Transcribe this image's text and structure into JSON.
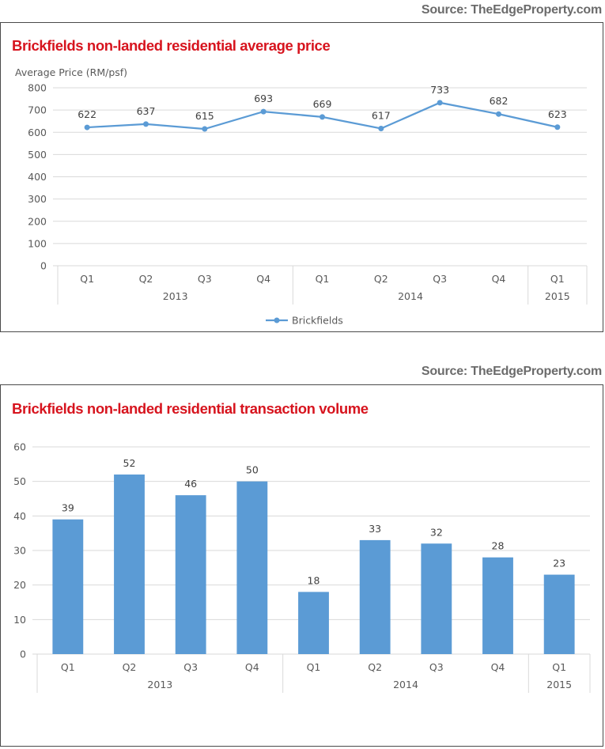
{
  "charts": [
    {
      "source": "Source: TheEdgeProperty.com",
      "chart_data": {
        "type": "line",
        "title": "Brickfields non-landed residential average price",
        "ylabel": "Average Price (RM/psf)",
        "ylim": [
          0,
          800
        ],
        "yticks": [
          0,
          100,
          200,
          300,
          400,
          500,
          600,
          700,
          800
        ],
        "categories": [
          "Q1",
          "Q2",
          "Q3",
          "Q4",
          "Q1",
          "Q2",
          "Q3",
          "Q4",
          "Q1"
        ],
        "groups": [
          {
            "label": "2013",
            "count": 4
          },
          {
            "label": "2014",
            "count": 4
          },
          {
            "label": "2015",
            "count": 1
          }
        ],
        "series": [
          {
            "name": "Brickfields",
            "color": "#5b9bd5",
            "values": [
              622,
              637,
              615,
              693,
              669,
              617,
              733,
              682,
              623
            ]
          }
        ],
        "legend": "bottom",
        "grid": true
      }
    },
    {
      "source": "Source: TheEdgeProperty.com",
      "chart_data": {
        "type": "bar",
        "title": "Brickfields non-landed residential transaction volume",
        "ylim": [
          0,
          60
        ],
        "yticks": [
          0,
          10,
          20,
          30,
          40,
          50,
          60
        ],
        "categories": [
          "Q1",
          "Q2",
          "Q3",
          "Q4",
          "Q1",
          "Q2",
          "Q3",
          "Q4",
          "Q1"
        ],
        "groups": [
          {
            "label": "2013",
            "count": 4
          },
          {
            "label": "2014",
            "count": 4
          },
          {
            "label": "2015",
            "count": 1
          }
        ],
        "series": [
          {
            "color": "#5b9bd5",
            "values": [
              39,
              52,
              46,
              50,
              18,
              33,
              32,
              28,
              23
            ]
          }
        ],
        "grid": true
      }
    }
  ]
}
